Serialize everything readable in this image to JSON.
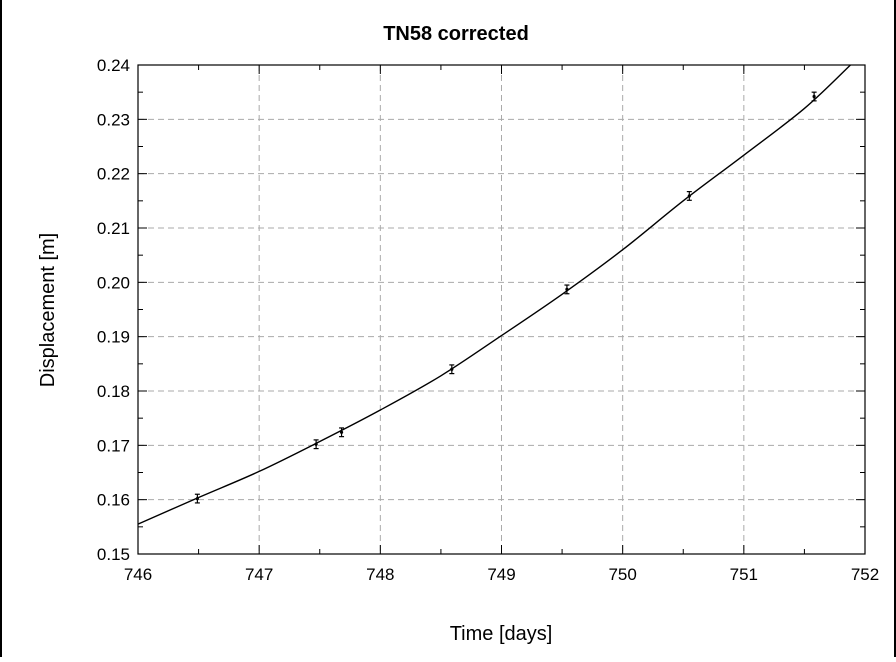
{
  "chart_data": {
    "type": "scatter",
    "title": "TN58 corrected",
    "xlabel": "Time [days]",
    "ylabel": "Displacement [m]",
    "xlim": [
      746,
      752
    ],
    "ylim": [
      0.15,
      0.24
    ],
    "x_ticks": [
      "746",
      "747",
      "748",
      "749",
      "750",
      "751",
      "752"
    ],
    "y_ticks": [
      "0.15",
      "0.16",
      "0.17",
      "0.18",
      "0.19",
      "0.20",
      "0.21",
      "0.22",
      "0.23",
      "0.24"
    ],
    "grid": true,
    "legend": "none",
    "series": [
      {
        "kind": "points-with-error-bars",
        "x": [
          746.49,
          747.47,
          747.68,
          748.59,
          749.54,
          750.55,
          751.58
        ],
        "y": [
          0.1602,
          0.1702,
          0.1724,
          0.184,
          0.1987,
          0.2159,
          0.2342
        ],
        "error": [
          0.0008,
          0.0008,
          0.0008,
          0.0008,
          0.0008,
          0.0008,
          0.0008
        ]
      },
      {
        "kind": "fit-curve",
        "x": [
          746.0,
          746.5,
          747.0,
          747.5,
          748.0,
          748.5,
          749.0,
          749.5,
          750.0,
          750.5,
          751.0,
          751.5,
          751.88
        ],
        "y": [
          0.1555,
          0.1604,
          0.1652,
          0.1707,
          0.1765,
          0.1828,
          0.1902,
          0.1978,
          0.206,
          0.215,
          0.2234,
          0.232,
          0.24
        ]
      }
    ]
  }
}
